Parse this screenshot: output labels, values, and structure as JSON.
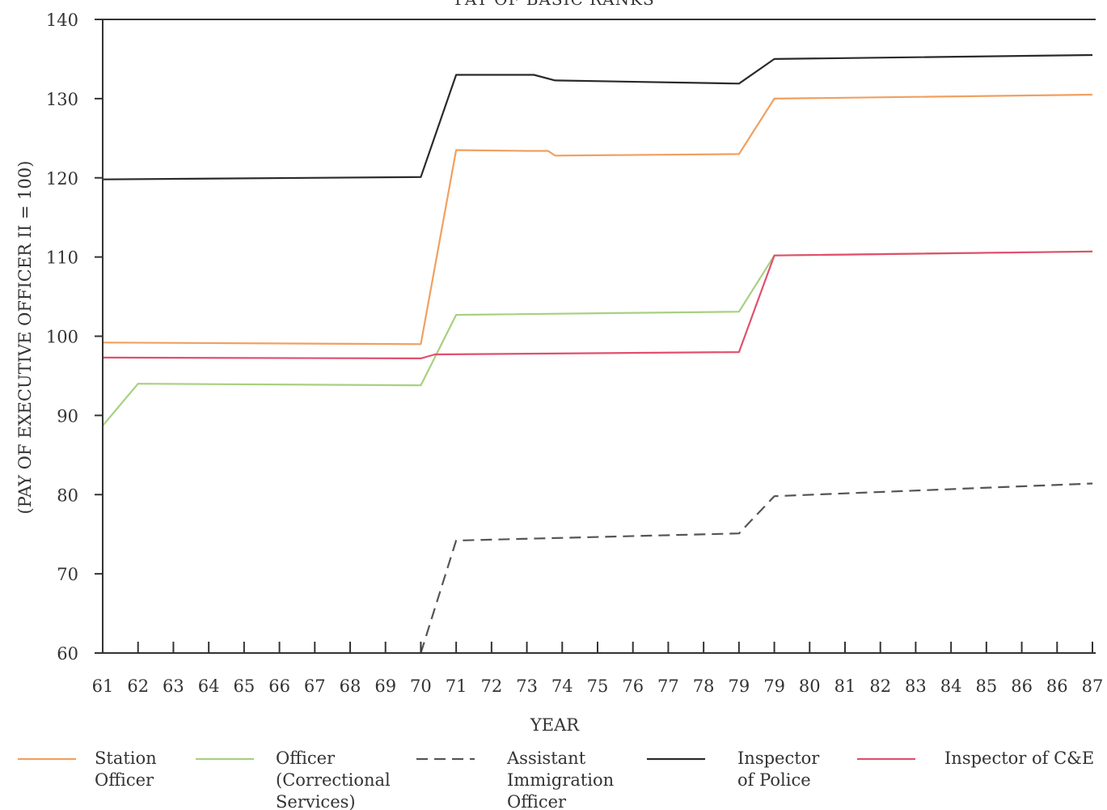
{
  "chart_data": {
    "type": "line",
    "title": "PAY OF BASIC RANKS",
    "xlabel": "YEAR",
    "ylabel": "(PAY OF EXECUTIVE OFFICER II = 100)",
    "ylim": [
      60,
      140
    ],
    "yticks": [
      60,
      70,
      80,
      90,
      100,
      110,
      120,
      130,
      140
    ],
    "grid": false,
    "legend_position": "bottom",
    "x_tick_labels": [
      "61",
      "62",
      "63",
      "64",
      "65",
      "66",
      "67",
      "68",
      "69",
      "70",
      "71",
      "72",
      "73",
      "74",
      "75",
      "76",
      "77",
      "78",
      "79",
      "79",
      "80",
      "81",
      "82",
      "83",
      "84",
      "85",
      "86",
      "86",
      "87"
    ],
    "x": [
      0,
      1,
      2,
      3,
      4,
      5,
      6,
      7,
      8,
      9,
      10,
      11,
      12,
      13,
      14,
      15,
      16,
      17,
      18,
      19,
      20,
      21,
      22,
      23,
      24,
      25,
      26,
      27,
      28
    ],
    "series": [
      {
        "name": "Station Officer",
        "color": "#f0a060",
        "dash": "solid",
        "points": [
          [
            0,
            99.2
          ],
          [
            9,
            99.0
          ],
          [
            10,
            123.5
          ],
          [
            12,
            123.4
          ],
          [
            12.6,
            123.4
          ],
          [
            12.8,
            122.8
          ],
          [
            18,
            123.0
          ],
          [
            19,
            130.0
          ],
          [
            28,
            130.5
          ]
        ]
      },
      {
        "name": "Officer (Correctional Services)",
        "color": "#a8d080",
        "dash": "solid",
        "points": [
          [
            0,
            88.7
          ],
          [
            1,
            94.0
          ],
          [
            9,
            93.8
          ],
          [
            10,
            102.7
          ],
          [
            18,
            103.1
          ],
          [
            19,
            110.2
          ],
          [
            28,
            110.7
          ]
        ]
      },
      {
        "name": "Assistant Immigration Officer",
        "color": "#555555",
        "dash": "dashed",
        "points": [
          [
            9,
            60.0
          ],
          [
            10,
            74.2
          ],
          [
            18,
            75.1
          ],
          [
            19,
            79.8
          ],
          [
            28,
            81.4
          ]
        ]
      },
      {
        "name": "Inspector of Police",
        "color": "#2a2a2a",
        "dash": "solid",
        "points": [
          [
            0,
            119.8
          ],
          [
            9,
            120.1
          ],
          [
            10,
            133.0
          ],
          [
            12.2,
            133.0
          ],
          [
            12.8,
            132.3
          ],
          [
            18,
            131.9
          ],
          [
            19,
            135.0
          ],
          [
            28,
            135.5
          ]
        ]
      },
      {
        "name": "Inspector of C&E",
        "color": "#e0506e",
        "dash": "solid",
        "points": [
          [
            0,
            97.3
          ],
          [
            9,
            97.2
          ],
          [
            9.4,
            97.7
          ],
          [
            18,
            98.0
          ],
          [
            19,
            110.2
          ],
          [
            28,
            110.7
          ]
        ]
      }
    ]
  },
  "legend": {
    "items": [
      {
        "lines": [
          "Station",
          "Officer"
        ]
      },
      {
        "lines": [
          "Officer",
          "(Correctional",
          "Services)"
        ]
      },
      {
        "lines": [
          "Assistant",
          "Immigration",
          "Officer"
        ]
      },
      {
        "lines": [
          "Inspector",
          "of Police"
        ]
      },
      {
        "lines": [
          "Inspector of C&E"
        ]
      }
    ]
  }
}
